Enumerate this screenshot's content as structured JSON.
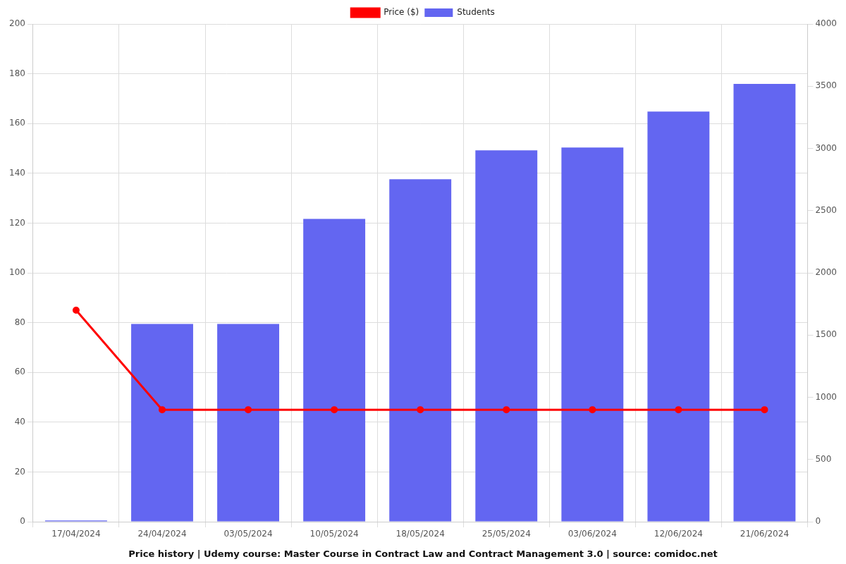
{
  "chart_data": {
    "type": "bar",
    "title": "Price history | Udemy course: Master Course in Contract Law and Contract Management 3.0 | source: comidoc.net",
    "categories": [
      "17/04/2024",
      "24/04/2024",
      "03/05/2024",
      "10/05/2024",
      "18/05/2024",
      "25/05/2024",
      "03/06/2024",
      "12/06/2024",
      "21/06/2024"
    ],
    "series": [
      {
        "name": "Price ($)",
        "type": "line",
        "color": "#ff0000",
        "marker": "circle",
        "line_style": "solid",
        "values": [
          85,
          45,
          45,
          45,
          45,
          45,
          45,
          45,
          45
        ]
      },
      {
        "name": "Students",
        "type": "bar",
        "color": "#6366f1",
        "axis": "y2",
        "values": [
          10,
          1589,
          1589,
          2434,
          2752,
          2984,
          3007,
          3296,
          3518
        ]
      }
    ],
    "ylim": [
      0,
      200
    ],
    "yticks": [
      0,
      20,
      40,
      60,
      80,
      100,
      120,
      140,
      160,
      180,
      200
    ],
    "y2lim": [
      0,
      4000
    ],
    "y2ticks": [
      0,
      500,
      1000,
      1500,
      2000,
      2500,
      3000,
      3500,
      4000
    ],
    "grid": true,
    "legend": "top"
  }
}
